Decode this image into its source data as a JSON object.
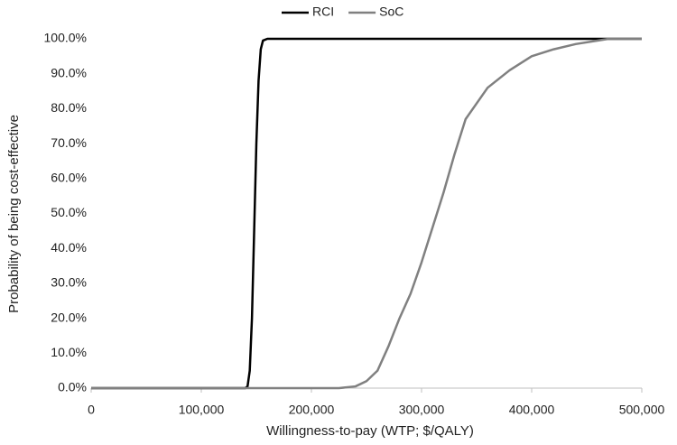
{
  "chart_data": {
    "type": "line",
    "x_label": "Willingness-to-pay (WTP; $/QALY)",
    "y_label": "Probability of being cost-effective",
    "legend": "top",
    "grid": false,
    "xlim": [
      0,
      500000
    ],
    "xticks": [
      0,
      {
        "value": 100000,
        "label": "100,000"
      },
      {
        "value": 200000,
        "label": "200,000"
      },
      {
        "value": 300000,
        "label": "300,000"
      },
      {
        "value": 400000,
        "label": "400,000"
      },
      {
        "value": 500000,
        "label": "500,000"
      }
    ],
    "ylim": [
      0,
      100
    ],
    "yticks": [
      {
        "value": 0,
        "label": "0.0%"
      },
      {
        "value": 10,
        "label": "10.0%"
      },
      {
        "value": 20,
        "label": "20.0%"
      },
      {
        "value": 30,
        "label": "30.0%"
      },
      {
        "value": 40,
        "label": "40.0%"
      },
      {
        "value": 50,
        "label": "50.0%"
      },
      {
        "value": 60,
        "label": "60.0%"
      },
      {
        "value": 70,
        "label": "70.0%"
      },
      {
        "value": 80,
        "label": "80.0%"
      },
      {
        "value": 90,
        "label": "90.0%"
      },
      {
        "value": 100,
        "label": "100.0%"
      }
    ],
    "series": [
      {
        "name": "RCI",
        "color": "#000000",
        "x": [
          0,
          140000,
          142000,
          144000,
          146000,
          148000,
          150000,
          152000,
          154000,
          156000,
          160000,
          200000,
          300000,
          400000,
          500000
        ],
        "values": [
          0,
          0,
          0.5,
          5,
          20,
          45,
          70,
          88,
          97,
          99.5,
          100,
          100,
          100,
          100,
          100
        ]
      },
      {
        "name": "SoC",
        "color": "#808080",
        "x": [
          0,
          225000,
          240000,
          250000,
          260000,
          270000,
          280000,
          290000,
          300000,
          310000,
          320000,
          330000,
          340000,
          360000,
          380000,
          400000,
          420000,
          440000,
          470000,
          500000
        ],
        "values": [
          0,
          0,
          0.5,
          2,
          5,
          12,
          20,
          27,
          36,
          46,
          56,
          67,
          77,
          86,
          91,
          95,
          97,
          98.5,
          100,
          100
        ]
      }
    ]
  }
}
